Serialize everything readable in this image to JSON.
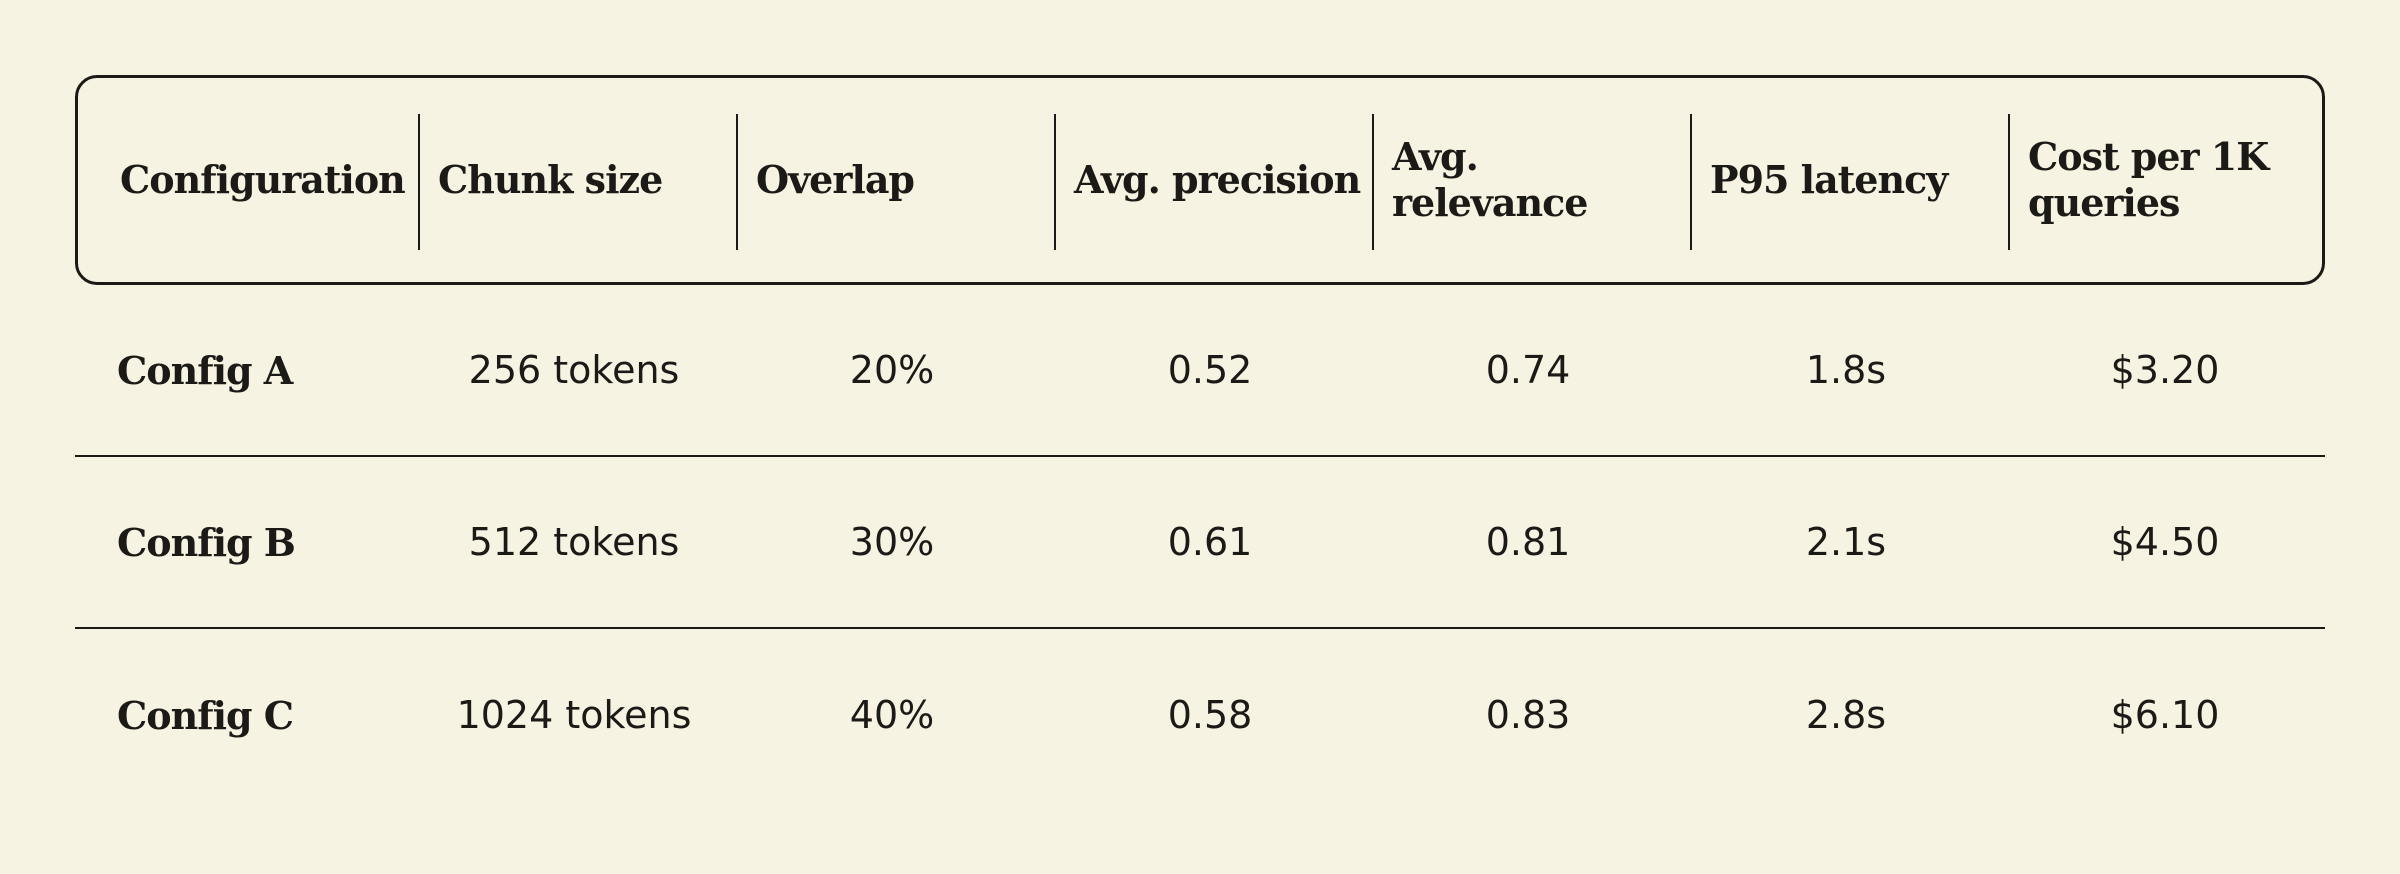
{
  "table": {
    "headers": [
      "Configuration",
      "Chunk size",
      "Overlap",
      "Avg. precision",
      "Avg. relevance",
      "P95 latency",
      "Cost per 1K queries"
    ],
    "rows": [
      [
        "Config A",
        "256 tokens",
        "20%",
        "0.52",
        "0.74",
        "1.8s",
        "$3.20"
      ],
      [
        "Config B",
        "512 tokens",
        "30%",
        "0.61",
        "0.81",
        "2.1s",
        "$4.50"
      ],
      [
        "Config C",
        "1024 tokens",
        "40%",
        "0.58",
        "0.83",
        "2.8s",
        "$6.10"
      ]
    ]
  },
  "colors": {
    "background": "#f6f3e2",
    "text": "#1c1a17",
    "border": "#1c1a17"
  }
}
